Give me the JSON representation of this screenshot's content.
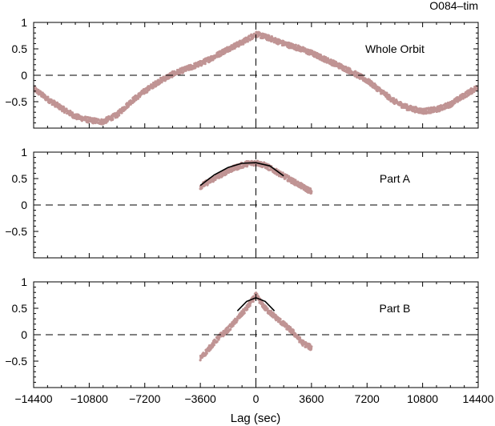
{
  "figure_title": "O084–tim",
  "xlabel": "Lag (sec)",
  "colors": {
    "points": "#c09494",
    "fit": "#000000",
    "zero_line": "#000000"
  },
  "chart_data": [
    {
      "type": "scatter",
      "panel_label": "Whole Orbit",
      "xlim": [
        -14400,
        14400
      ],
      "ylim": [
        -1,
        1
      ],
      "xticks": [
        -14400,
        -10800,
        -7200,
        -3600,
        0,
        3600,
        7200,
        10800,
        14400
      ],
      "yticks": [
        1,
        0.5,
        0,
        -0.5
      ],
      "ytick_labels": [
        "1",
        "0.5",
        "0",
        "−0.5"
      ],
      "grid": false,
      "dashed_reference_lines": {
        "x": 0,
        "y": 0
      },
      "series": [
        {
          "style": "dense-points",
          "x": [
            -14400,
            -13500,
            -12600,
            -11700,
            -10800,
            -9900,
            -9000,
            -8100,
            -7200,
            -6300,
            -5400,
            -4500,
            -3600,
            -2700,
            -1800,
            -900,
            0,
            900,
            1800,
            2700,
            3600,
            4500,
            5400,
            6300,
            7200,
            8100,
            9000,
            9900,
            10800,
            11700,
            12600,
            13500,
            14400
          ],
          "y": [
            -0.25,
            -0.45,
            -0.62,
            -0.78,
            -0.85,
            -0.88,
            -0.75,
            -0.5,
            -0.3,
            -0.12,
            0.02,
            0.12,
            0.22,
            0.35,
            0.5,
            0.62,
            0.78,
            0.7,
            0.6,
            0.52,
            0.42,
            0.3,
            0.18,
            0.05,
            -0.1,
            -0.3,
            -0.5,
            -0.62,
            -0.68,
            -0.65,
            -0.55,
            -0.38,
            -0.22
          ]
        }
      ]
    },
    {
      "type": "scatter",
      "panel_label": "Part A",
      "xlim": [
        -14400,
        14400
      ],
      "ylim": [
        -1,
        1
      ],
      "xticks": [
        -14400,
        -10800,
        -7200,
        -3600,
        0,
        3600,
        7200,
        10800,
        14400
      ],
      "yticks": [
        1,
        0.5,
        0,
        -0.5
      ],
      "ytick_labels": [
        "1",
        "0.5",
        "0",
        "−0.5"
      ],
      "grid": false,
      "dashed_reference_lines": {
        "x": 0,
        "y": 0
      },
      "series": [
        {
          "style": "dense-points",
          "x": [
            -3600,
            -3000,
            -2400,
            -1800,
            -1200,
            -600,
            0,
            600,
            1200,
            1800,
            2400,
            3000,
            3600
          ],
          "y": [
            0.35,
            0.45,
            0.55,
            0.65,
            0.72,
            0.78,
            0.8,
            0.75,
            0.65,
            0.55,
            0.45,
            0.35,
            0.25
          ]
        },
        {
          "style": "fit-line",
          "x": [
            -3600,
            -2700,
            -1800,
            -900,
            0,
            900,
            1800
          ],
          "y": [
            0.37,
            0.57,
            0.71,
            0.79,
            0.8,
            0.74,
            0.55
          ]
        }
      ]
    },
    {
      "type": "scatter",
      "panel_label": "Part B",
      "xlim": [
        -14400,
        14400
      ],
      "ylim": [
        -1,
        1
      ],
      "xticks": [
        -14400,
        -10800,
        -7200,
        -3600,
        0,
        3600,
        7200,
        10800,
        14400
      ],
      "xtick_labels": [
        "−14400",
        "−10800",
        "−7200",
        "−3600",
        "0",
        "3600",
        "7200",
        "10800",
        "14400"
      ],
      "yticks": [
        1,
        0.5,
        0,
        -0.5
      ],
      "ytick_labels": [
        "1",
        "0.5",
        "0",
        "−0.5"
      ],
      "grid": false,
      "dashed_reference_lines": {
        "x": 0,
        "y": 0
      },
      "series": [
        {
          "style": "dense-points",
          "x": [
            -3600,
            -3000,
            -2400,
            -1800,
            -1200,
            -600,
            0,
            600,
            1200,
            1800,
            2400,
            3000,
            3600
          ],
          "y": [
            -0.45,
            -0.25,
            -0.05,
            0.1,
            0.3,
            0.5,
            0.75,
            0.5,
            0.35,
            0.2,
            0.05,
            -0.15,
            -0.25
          ]
        },
        {
          "style": "fit-line",
          "x": [
            -1200,
            -600,
            0,
            600,
            1200
          ],
          "y": [
            0.45,
            0.63,
            0.7,
            0.63,
            0.45
          ]
        }
      ]
    }
  ]
}
